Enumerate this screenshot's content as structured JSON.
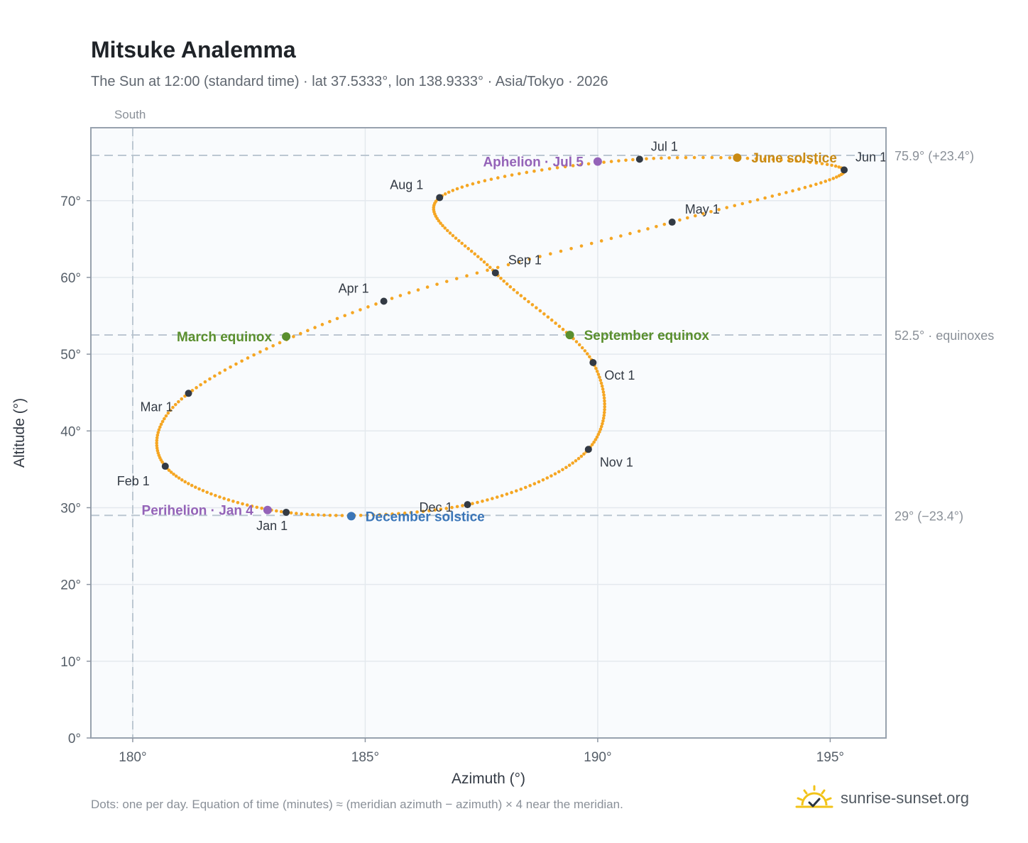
{
  "title": "Mitsuke Analemma",
  "subtitle": "The Sun at 12:00 (standard time) · lat 37.5333°, lon 138.9333° · Asia/Tokyo · 2026",
  "footnote": "Dots: one per day. Equation of time (minutes) ≈ (meridian azimuth − azimuth) × 4 near the meridian.",
  "brand": {
    "name": "sunrise-sunset.org",
    "icon": "sun-check-icon"
  },
  "colors": {
    "dots": "#f5a623",
    "month": "#333a44",
    "equinox": "#5a8f2e",
    "june": "#c98a12",
    "december": "#3b76b8",
    "perihelion": "#9463b8",
    "guide": "#b8c4cf",
    "grid": "#e4e9ee",
    "plot_bg": "#f9fbfd"
  },
  "chart_data": {
    "type": "scatter",
    "xlabel": "Azimuth (°)",
    "ylabel": "Altitude (°)",
    "xlim": [
      179.1,
      196.2
    ],
    "ylim": [
      0,
      79.5
    ],
    "xticks": [
      180,
      185,
      190,
      195
    ],
    "yticks": [
      0,
      10,
      20,
      30,
      40,
      50,
      60,
      70
    ],
    "grid": true,
    "south_label": "South",
    "south_azimuth": 180,
    "ref_lines": [
      {
        "value": 75.9,
        "label": "75.9° (+23.4°)"
      },
      {
        "value": 52.5,
        "label": "52.5° · equinoxes"
      },
      {
        "value": 29,
        "label": "29° (−23.4°)"
      }
    ],
    "months": [
      {
        "label": "Jan 1",
        "az": 183.3,
        "alt": 29.4
      },
      {
        "label": "Feb 1",
        "az": 180.7,
        "alt": 35.4
      },
      {
        "label": "Mar 1",
        "az": 181.2,
        "alt": 44.9
      },
      {
        "label": "Apr 1",
        "az": 185.4,
        "alt": 56.9
      },
      {
        "label": "May 1",
        "az": 191.6,
        "alt": 67.2
      },
      {
        "label": "Jun 1",
        "az": 195.3,
        "alt": 74.0
      },
      {
        "label": "Jul 1",
        "az": 190.9,
        "alt": 75.4
      },
      {
        "label": "Aug 1",
        "az": 186.6,
        "alt": 70.4
      },
      {
        "label": "Sep 1",
        "az": 187.8,
        "alt": 60.6
      },
      {
        "label": "Oct 1",
        "az": 189.9,
        "alt": 48.9
      },
      {
        "label": "Nov 1",
        "az": 189.8,
        "alt": 37.6
      },
      {
        "label": "Dec 1",
        "az": 187.2,
        "alt": 30.4
      }
    ],
    "events": [
      {
        "label": "March equinox",
        "az": 183.3,
        "alt": 52.3,
        "kind": "equinox",
        "anchor": "left"
      },
      {
        "label": "September equinox",
        "az": 189.4,
        "alt": 52.5,
        "kind": "equinox",
        "anchor": "right"
      },
      {
        "label": "June solstice",
        "az": 193.0,
        "alt": 75.6,
        "kind": "june",
        "anchor": "right"
      },
      {
        "label": "December solstice",
        "az": 184.7,
        "alt": 28.9,
        "kind": "december",
        "anchor": "right"
      },
      {
        "label": "Perihelion · Jan 4",
        "az": 182.9,
        "alt": 29.7,
        "kind": "perihelion",
        "anchor": "left"
      },
      {
        "label": "Aphelion · Jul 5",
        "az": 190.0,
        "alt": 75.1,
        "kind": "perihelion",
        "anchor": "left"
      }
    ]
  }
}
